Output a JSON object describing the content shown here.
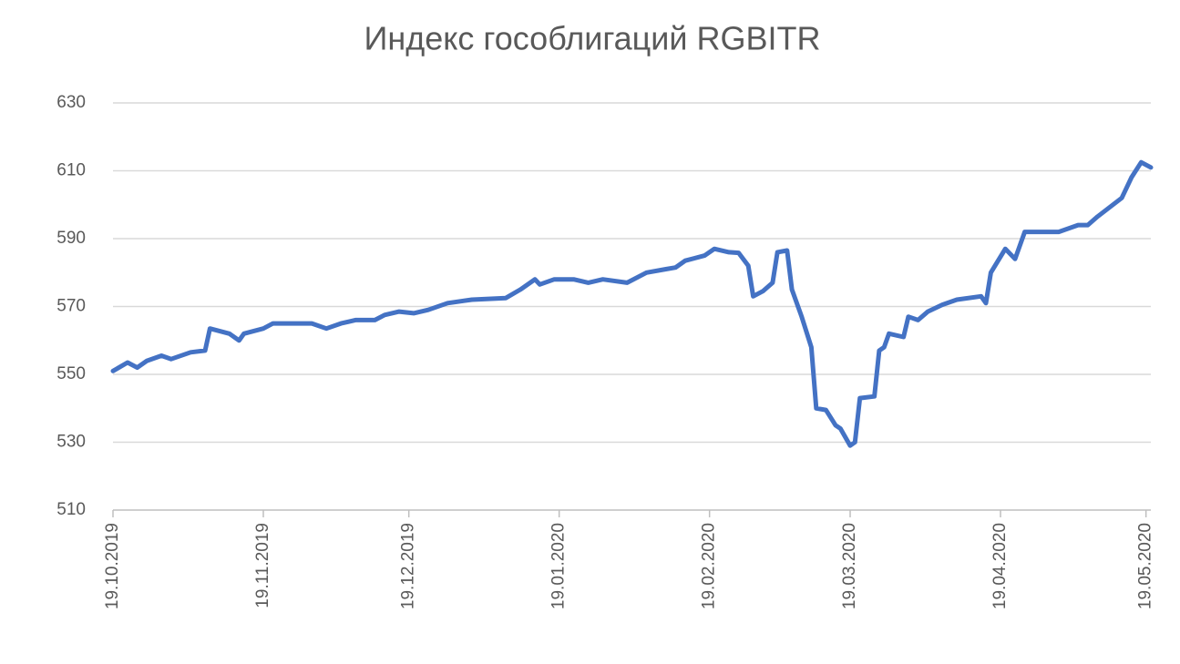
{
  "chart_data": {
    "type": "line",
    "title": "Индекс гособлигаций RGBITR",
    "x": [
      "2019-10-19",
      "2019-10-22",
      "2019-10-24",
      "2019-10-26",
      "2019-10-29",
      "2019-10-31",
      "2019-11-04",
      "2019-11-07",
      "2019-11-08",
      "2019-11-12",
      "2019-11-14",
      "2019-11-15",
      "2019-11-19",
      "2019-11-21",
      "2019-11-29",
      "2019-12-02",
      "2019-12-05",
      "2019-12-08",
      "2019-12-12",
      "2019-12-14",
      "2019-12-17",
      "2019-12-20",
      "2019-12-23",
      "2019-12-27",
      "2020-01-01",
      "2020-01-08",
      "2020-01-11",
      "2020-01-14",
      "2020-01-15",
      "2020-01-18",
      "2020-01-22",
      "2020-01-25",
      "2020-01-28",
      "2020-02-02",
      "2020-02-06",
      "2020-02-10",
      "2020-02-12",
      "2020-02-14",
      "2020-02-18",
      "2020-02-20",
      "2020-02-23",
      "2020-02-25",
      "2020-02-27",
      "2020-02-28",
      "2020-03-01",
      "2020-03-03",
      "2020-03-04",
      "2020-03-06",
      "2020-03-07",
      "2020-03-09",
      "2020-03-11",
      "2020-03-12",
      "2020-03-14",
      "2020-03-16",
      "2020-03-17",
      "2020-03-19",
      "2020-03-20",
      "2020-03-21",
      "2020-03-24",
      "2020-03-25",
      "2020-03-26",
      "2020-03-27",
      "2020-03-30",
      "2020-03-31",
      "2020-04-02",
      "2020-04-04",
      "2020-04-07",
      "2020-04-10",
      "2020-04-15",
      "2020-04-16",
      "2020-04-17",
      "2020-04-20",
      "2020-04-22",
      "2020-04-24",
      "2020-05-01",
      "2020-05-05",
      "2020-05-07",
      "2020-05-09",
      "2020-05-14",
      "2020-05-16",
      "2020-05-18",
      "2020-05-20"
    ],
    "series": [
      {
        "name": "RGBITR",
        "color": "#4472c4",
        "values": [
          551,
          553.5,
          552,
          554,
          555.5,
          554.5,
          556.5,
          557,
          563.5,
          562,
          560,
          562,
          563.5,
          565,
          565,
          563.5,
          565,
          566,
          566,
          567.5,
          568.5,
          568,
          569,
          571,
          572,
          572.5,
          575,
          578,
          576.5,
          578,
          578,
          577,
          578,
          577,
          580,
          581,
          581.5,
          583.5,
          585,
          587,
          586,
          585.8,
          582,
          573,
          574.5,
          577,
          586,
          586.5,
          575,
          567,
          558,
          540,
          539.5,
          535,
          534,
          529,
          530,
          543,
          543.5,
          557,
          558,
          562,
          561,
          567,
          566,
          568.5,
          570.5,
          572,
          573,
          571,
          580,
          587,
          584,
          592,
          592,
          594,
          594,
          596.5,
          602,
          608,
          612.5,
          611
        ]
      }
    ],
    "xlim": [
      "2019-10-19",
      "2020-05-20"
    ],
    "xticks": [
      {
        "value": "2019-10-19",
        "label": "19.10.2019"
      },
      {
        "value": "2019-11-19",
        "label": "19.11.2019"
      },
      {
        "value": "2019-12-19",
        "label": "19.12.2019"
      },
      {
        "value": "2020-01-19",
        "label": "19.01.2020"
      },
      {
        "value": "2020-02-19",
        "label": "19.02.2020"
      },
      {
        "value": "2020-03-19",
        "label": "19.03.2020"
      },
      {
        "value": "2020-04-19",
        "label": "19.04.2020"
      },
      {
        "value": "2020-05-19",
        "label": "19.05.2020"
      }
    ],
    "ylim": [
      510,
      630
    ],
    "yticks": [
      510,
      530,
      550,
      570,
      590,
      610,
      630
    ],
    "grid": true
  }
}
